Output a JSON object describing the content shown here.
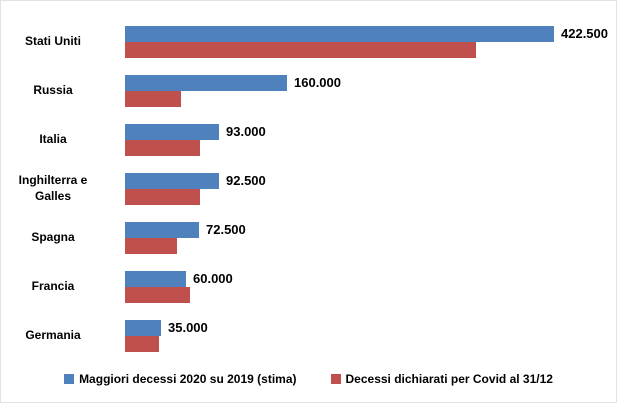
{
  "chart_data": {
    "type": "bar",
    "orientation": "horizontal",
    "title": "",
    "xlabel": "",
    "ylabel": "",
    "grid": false,
    "axis_visible": false,
    "legend_position": "bottom",
    "xlim": [
      0,
      450000
    ],
    "categories": [
      "Stati Uniti",
      "Russia",
      "Italia",
      "Inghilterra e Galles",
      "Spagna",
      "Francia",
      "Germania"
    ],
    "series": [
      {
        "name": "Maggiori decessi 2020 su 2019 (stima)",
        "color": "#4F81BD",
        "values": [
          422500,
          160000,
          93000,
          92500,
          72500,
          60000,
          35000
        ],
        "data_labels": [
          "422.500",
          "160.000",
          "93.000",
          "92.500",
          "72.500",
          "60.000",
          "35.000"
        ],
        "labels_visible": true
      },
      {
        "name": "Decessi dichiarati per Covid al 31/12",
        "color": "#C0504D",
        "values": [
          346000,
          55000,
          74000,
          74000,
          51000,
          64000,
          33000
        ],
        "data_labels": [
          "",
          "",
          "",
          "",
          "",
          "",
          ""
        ],
        "labels_visible": false
      }
    ],
    "colors": {
      "background": "#FFFFFF",
      "text": "#000000",
      "series_blue": "#4F81BD",
      "series_red": "#C0504D"
    }
  }
}
